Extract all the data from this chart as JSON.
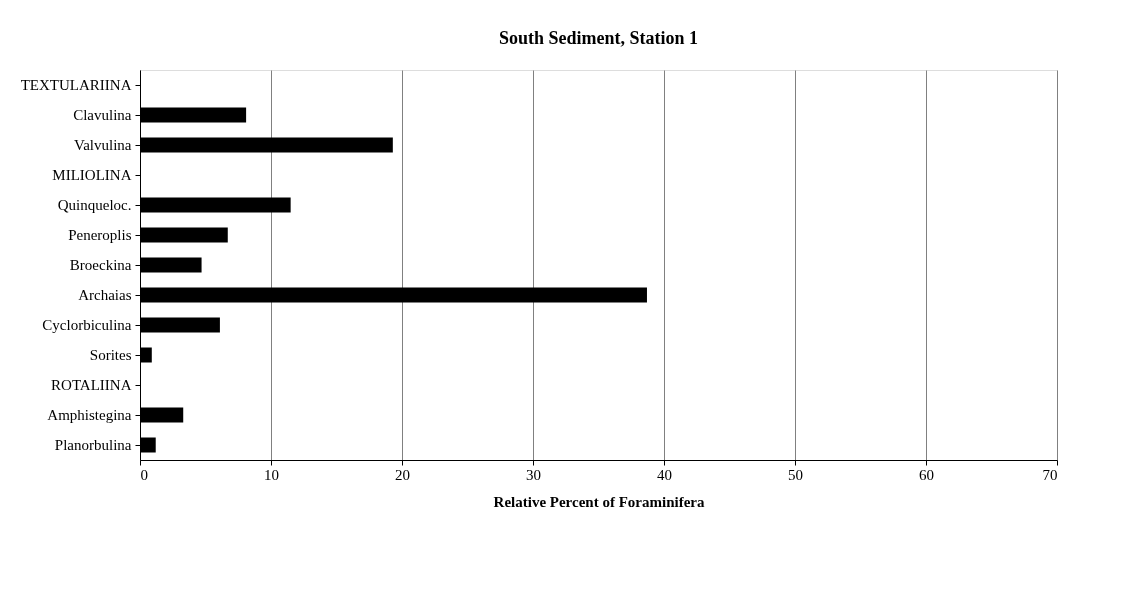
{
  "chart_data": {
    "type": "bar",
    "orientation": "horizontal",
    "title": "South Sediment, Station 1",
    "xlabel": "Relative Percent of Foraminifera",
    "categories": [
      "TEXTULARIINA",
      "Clavulina",
      "Valvulina",
      "MILIOLINA",
      "Quinqueloc.",
      "Peneroplis",
      "Broeckina",
      "Archaias",
      "Cyclorbiculina",
      "Sorites",
      "ROTALIINA",
      "Amphistegina",
      "Planorbulina"
    ],
    "values": [
      null,
      8.1,
      19.3,
      null,
      11.5,
      6.7,
      4.7,
      38.7,
      6.1,
      0.9,
      null,
      3.3,
      1.2
    ],
    "color": "#000000",
    "xlim": [
      0,
      70
    ],
    "xticks": [
      0,
      10,
      20,
      30,
      40,
      50,
      60,
      70
    ],
    "grid": "x"
  }
}
